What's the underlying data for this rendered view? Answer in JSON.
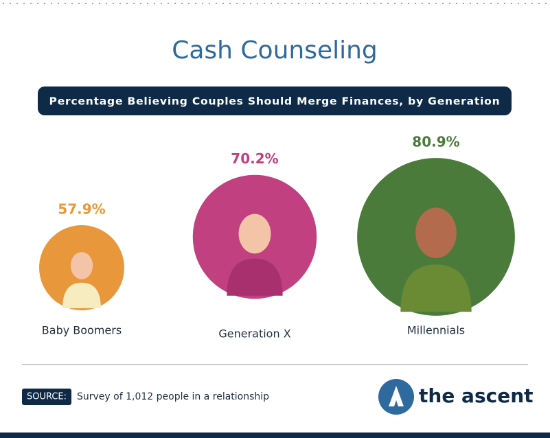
{
  "chart_data": {
    "type": "circle",
    "title": "Cash Counseling",
    "subtitle": "Percentage Believing Couples Should Merge Finances, by Generation",
    "categories": [
      "Baby Boomers",
      "Generation X",
      "Millennials"
    ],
    "values": [
      57.9,
      70.2,
      80.9
    ],
    "value_labels": [
      "57.9%",
      "70.2%",
      "80.9%"
    ],
    "colors": [
      "#e8983a",
      "#c1407f",
      "#4b7b3b"
    ],
    "source_label": "SOURCE:",
    "source": "Survey of 1,012 people in a relationship",
    "brand": "the ascent"
  }
}
